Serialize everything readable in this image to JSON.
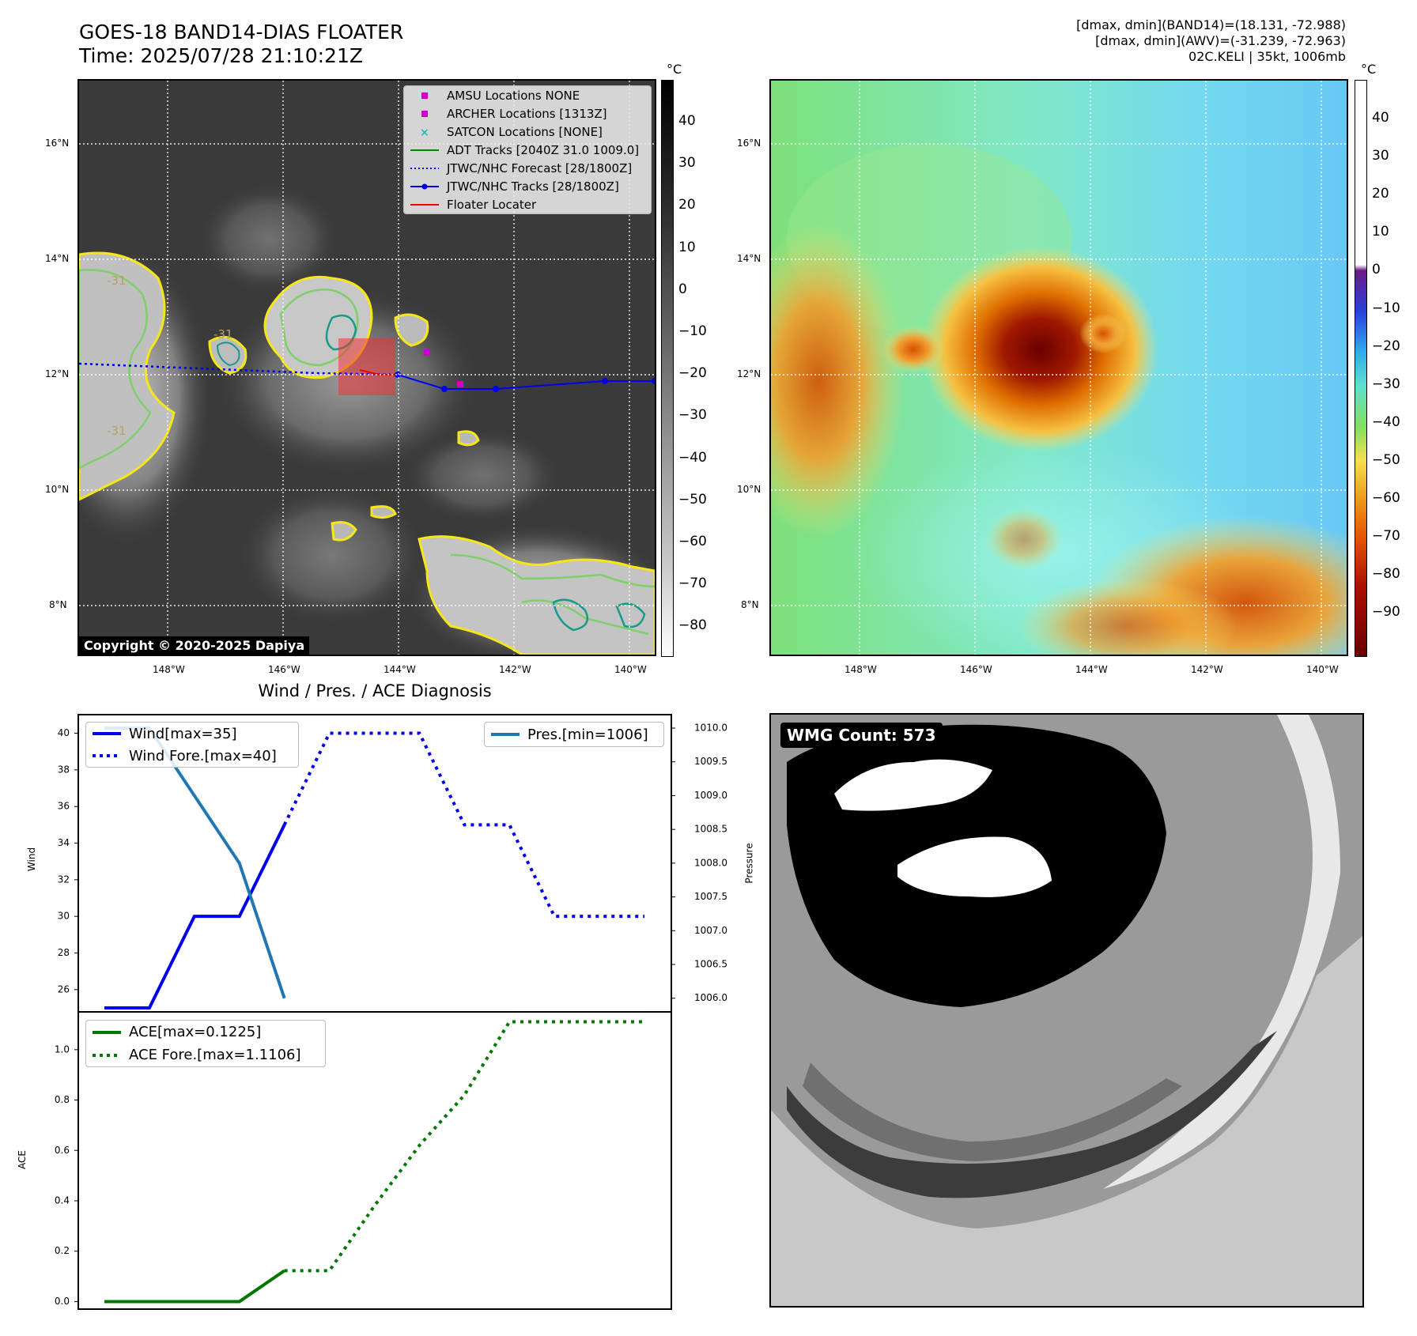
{
  "header": {
    "title_line1": "GOES-18 BAND14-DIAS FLOATER",
    "title_line2": "Time: 2025/07/28 21:10:21Z",
    "info_line1": "[dmax, dmin](BAND14)=(18.131, -72.988)",
    "info_line2": "[dmax, dmin](AWV)=(-31.239, -72.963)",
    "info_line3": "02C.KELI | 35kt, 1006mb"
  },
  "map_axes": {
    "lat_labels": [
      "16°N",
      "14°N",
      "12°N",
      "10°N",
      "8°N"
    ],
    "lon_labels": [
      "148°W",
      "146°W",
      "144°W",
      "142°W",
      "140°W"
    ]
  },
  "map_left": {
    "legend": [
      {
        "label": "AMSU Locations NONE",
        "marker": "square",
        "color": "#cc00cc"
      },
      {
        "label": "ARCHER Locations [1313Z]",
        "marker": "square",
        "color": "#cc00cc"
      },
      {
        "label": "SATCON Locations [NONE]",
        "marker": "x",
        "color": "#22bbbb"
      },
      {
        "label": "ADT Tracks [2040Z 31.0 1009.0]",
        "marker": "line",
        "color": "#008800"
      },
      {
        "label": "JTWC/NHC Forecast [28/1800Z]",
        "marker": "dotted",
        "color": "#0000ee"
      },
      {
        "label": "JTWC/NHC Tracks [28/1800Z]",
        "marker": "line-dot",
        "color": "#0000ee"
      },
      {
        "label": "Floater Locater",
        "marker": "line",
        "color": "#ee0000"
      }
    ],
    "copyright": "Copyright © 2020-2025 Dapiya",
    "contour_label": "-31"
  },
  "colorbar_left": {
    "unit": "°C",
    "ticks": [
      "40",
      "30",
      "20",
      "10",
      "0",
      "−10",
      "−20",
      "−30",
      "−40",
      "−50",
      "−60",
      "−70",
      "−80"
    ]
  },
  "colorbar_right": {
    "unit": "°C",
    "ticks": [
      "40",
      "30",
      "20",
      "10",
      "0",
      "−10",
      "−20",
      "−30",
      "−40",
      "−50",
      "−60",
      "−70",
      "−80",
      "−90"
    ]
  },
  "diag": {
    "title": "Wind / Pres. / ACE Diagnosis",
    "wind_ylabel": "Wind",
    "pres_ylabel": "Pressure",
    "ace_ylabel": "ACE",
    "wind_ticks": [
      "40",
      "38",
      "36",
      "34",
      "32",
      "30",
      "28",
      "26"
    ],
    "pres_ticks": [
      "1010.0",
      "1009.5",
      "1009.0",
      "1008.5",
      "1008.0",
      "1007.5",
      "1007.0",
      "1006.5",
      "1006.0"
    ],
    "ace_ticks": [
      "1.0",
      "0.8",
      "0.6",
      "0.4",
      "0.2",
      "0.0"
    ],
    "legend_wind": "Wind[max=35]",
    "legend_wind_fore": "Wind Fore.[max=40]",
    "legend_pres": "Pres.[min=1006]",
    "legend_ace": "ACE[max=0.1225]",
    "legend_ace_fore": "ACE Fore.[max=1.1106]"
  },
  "wmg": {
    "label": "WMG Count: 573"
  },
  "colors": {
    "wind": "#0000ee",
    "pres": "#1f77b4",
    "ace": "#007700"
  },
  "chart_data": [
    {
      "type": "line",
      "title": "Wind / Pres. / ACE Diagnosis",
      "ylabel": "Wind",
      "ylim": [
        25,
        40.8
      ],
      "series": [
        {
          "name": "Wind[max=35]",
          "x": [
            0,
            1,
            2,
            3,
            4
          ],
          "values": [
            25,
            25,
            30,
            30,
            35
          ]
        },
        {
          "name": "Wind Fore.[max=40]",
          "x": [
            4,
            5,
            6,
            7,
            8,
            9,
            10,
            11,
            12
          ],
          "values": [
            35,
            40,
            40,
            40,
            35,
            35,
            30,
            30,
            30
          ]
        }
      ]
    },
    {
      "type": "line",
      "ylabel": "Pressure",
      "ylim": [
        1005.95,
        1010.0
      ],
      "series": [
        {
          "name": "Pres.[min=1006]",
          "x": [
            0,
            1,
            2,
            3,
            4
          ],
          "values": [
            1010,
            1010,
            1009,
            1008,
            1006
          ]
        }
      ]
    },
    {
      "type": "line",
      "ylabel": "ACE",
      "ylim": [
        -0.03,
        1.15
      ],
      "series": [
        {
          "name": "ACE[max=0.1225]",
          "x": [
            0,
            1,
            2,
            3,
            4
          ],
          "values": [
            0,
            0,
            0,
            0,
            0.1225
          ]
        },
        {
          "name": "ACE Fore.[max=1.1106]",
          "x": [
            4,
            5,
            6,
            7,
            8,
            9,
            10,
            11,
            12
          ],
          "values": [
            0.1225,
            0.1225,
            0.38,
            0.62,
            0.82,
            1.1106,
            1.1106,
            1.1106,
            1.1106
          ]
        }
      ]
    }
  ]
}
